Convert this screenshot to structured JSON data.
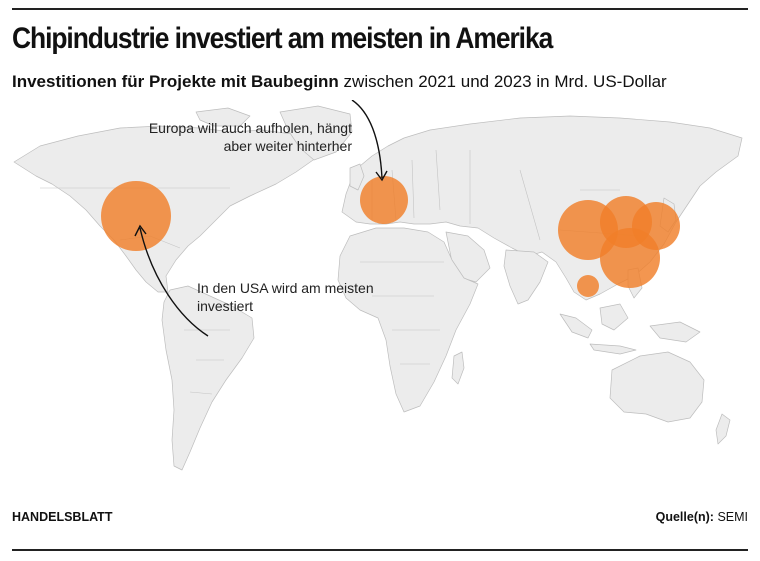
{
  "header": {
    "title": "Chipindustrie investiert am meisten in Amerika",
    "subtitle_bold": "Investitionen für Projekte mit Baubeginn",
    "subtitle_rest": " zwischen 2021 und 2023 in Mrd. US-Dollar"
  },
  "annotations": {
    "europe_line1": "Europa will auch aufholen, hängt",
    "europe_line2": "aber weiter hinterher",
    "usa_line1": "In den USA wird am meisten",
    "usa_line2": "investiert"
  },
  "footer": {
    "publisher": "HANDELSBLATT",
    "source_label": "Quelle(n):",
    "source_value": "SEMI"
  },
  "colors": {
    "bubble": "#f07f2a",
    "land": "#ececec",
    "border": "#b8b8b8",
    "text": "#111111"
  }
}
